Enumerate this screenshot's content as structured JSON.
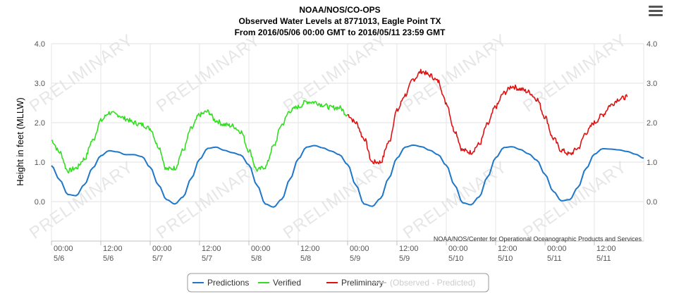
{
  "menu_icon": "hamburger-menu-icon",
  "chart_data": {
    "type": "line",
    "title": "NOAA/NOS/CO-OPS",
    "subtitle_1": "Observed Water Levels at 8771013, Eagle Point TX",
    "subtitle_2": "From 2016/05/06 00:00 GMT to 2016/05/11 23:59 GMT",
    "ylabel": "Height in feet (MLLW)",
    "xlabel": "",
    "credit": "NOAA/NOS/Center for Operational Oceanographic Products and Services",
    "watermark": "PRELIMINARY",
    "ylim": [
      -1.0,
      4.0
    ],
    "yticks": [
      0.0,
      1.0,
      2.0,
      3.0,
      4.0
    ],
    "ytick_labels": [
      "0.0",
      "1.0",
      "2.0",
      "3.0",
      "4.0"
    ],
    "xlim": [
      0,
      144
    ],
    "x_unit": "hours",
    "xticks": [
      {
        "x": 0,
        "time": "00:00",
        "date": "5/6"
      },
      {
        "x": 12,
        "time": "12:00",
        "date": "5/6"
      },
      {
        "x": 24,
        "time": "00:00",
        "date": "5/7"
      },
      {
        "x": 36,
        "time": "12:00",
        "date": "5/7"
      },
      {
        "x": 48,
        "time": "00:00",
        "date": "5/8"
      },
      {
        "x": 60,
        "time": "12:00",
        "date": "5/8"
      },
      {
        "x": 72,
        "time": "00:00",
        "date": "5/9"
      },
      {
        "x": 84,
        "time": "12:00",
        "date": "5/9"
      },
      {
        "x": 96,
        "time": "00:00",
        "date": "5/10"
      },
      {
        "x": 108,
        "time": "12:00",
        "date": "5/10"
      },
      {
        "x": 120,
        "time": "00:00",
        "date": "5/11"
      },
      {
        "x": 132,
        "time": "12:00",
        "date": "5/11"
      }
    ],
    "grid": true,
    "legend_position": "bottom-center",
    "series": [
      {
        "name": "Predictions",
        "color": "#1f77c9",
        "x": [
          0,
          2,
          4,
          6,
          8,
          10,
          12,
          14,
          16,
          18,
          20,
          22,
          24,
          26,
          28,
          30,
          32,
          34,
          36,
          38,
          40,
          42,
          44,
          46,
          48,
          50,
          52,
          54,
          56,
          58,
          60,
          62,
          64,
          66,
          68,
          70,
          72,
          74,
          76,
          78,
          80,
          82,
          84,
          86,
          88,
          90,
          92,
          94,
          96,
          98,
          100,
          102,
          104,
          106,
          108,
          110,
          112,
          114,
          116,
          118,
          120,
          122,
          124,
          126,
          128,
          130,
          132,
          134,
          136,
          138,
          140,
          142,
          144
        ],
        "y": [
          0.91,
          0.55,
          0.18,
          0.15,
          0.43,
          0.85,
          1.16,
          1.29,
          1.26,
          1.19,
          1.19,
          1.14,
          0.87,
          0.42,
          0.05,
          -0.06,
          0.12,
          0.59,
          1.07,
          1.35,
          1.38,
          1.3,
          1.24,
          1.18,
          0.93,
          0.41,
          -0.06,
          -0.14,
          0.06,
          0.57,
          1.08,
          1.38,
          1.42,
          1.36,
          1.28,
          1.19,
          0.94,
          0.42,
          -0.06,
          -0.12,
          0.08,
          0.59,
          1.1,
          1.38,
          1.43,
          1.39,
          1.3,
          1.19,
          0.92,
          0.42,
          -0.03,
          -0.08,
          0.12,
          0.62,
          1.11,
          1.37,
          1.39,
          1.32,
          1.21,
          1.05,
          0.69,
          0.26,
          0.02,
          0.05,
          0.36,
          0.84,
          1.2,
          1.34,
          1.33,
          1.31,
          1.27,
          1.2,
          1.1
        ]
      },
      {
        "name": "Verified",
        "color": "#33dd22",
        "x": [
          0,
          2,
          4,
          6,
          8,
          10,
          12,
          14,
          16,
          18,
          20,
          22,
          24,
          26,
          28,
          30,
          32,
          34,
          36,
          38,
          40,
          42,
          44,
          46,
          48,
          50,
          52,
          54,
          56,
          58,
          60,
          62,
          64,
          66,
          68,
          70,
          72
        ],
        "y": [
          1.55,
          1.25,
          0.78,
          0.85,
          1.08,
          1.55,
          2.05,
          2.25,
          2.2,
          2.1,
          2.0,
          1.95,
          1.85,
          1.4,
          0.82,
          0.85,
          1.3,
          1.85,
          2.2,
          2.28,
          2.05,
          1.95,
          1.92,
          1.78,
          1.3,
          0.8,
          0.88,
          1.4,
          1.95,
          2.3,
          2.4,
          2.53,
          2.52,
          2.45,
          2.38,
          2.38,
          2.2
        ]
      },
      {
        "name": "Preliminary",
        "color": "#dd1111",
        "x": [
          72,
          74,
          76,
          78,
          80,
          82,
          84,
          86,
          88,
          90,
          92,
          94,
          96,
          98,
          100,
          102,
          104,
          106,
          108,
          110,
          112,
          114,
          116,
          118,
          120,
          122,
          124,
          126,
          128,
          130,
          132,
          134,
          136,
          138,
          140
        ],
        "y": [
          2.2,
          2.0,
          1.6,
          1.0,
          1.0,
          1.5,
          2.3,
          2.7,
          3.1,
          3.3,
          3.2,
          3.05,
          2.5,
          1.8,
          1.3,
          1.25,
          1.45,
          1.95,
          2.4,
          2.75,
          2.92,
          2.85,
          2.78,
          2.6,
          2.15,
          1.6,
          1.3,
          1.2,
          1.35,
          1.75,
          2.0,
          2.2,
          2.45,
          2.6,
          2.65
        ]
      },
      {
        "name": "(Observed - Predicted)",
        "color": "#cccccc",
        "hidden": true,
        "x": [],
        "y": []
      }
    ]
  }
}
